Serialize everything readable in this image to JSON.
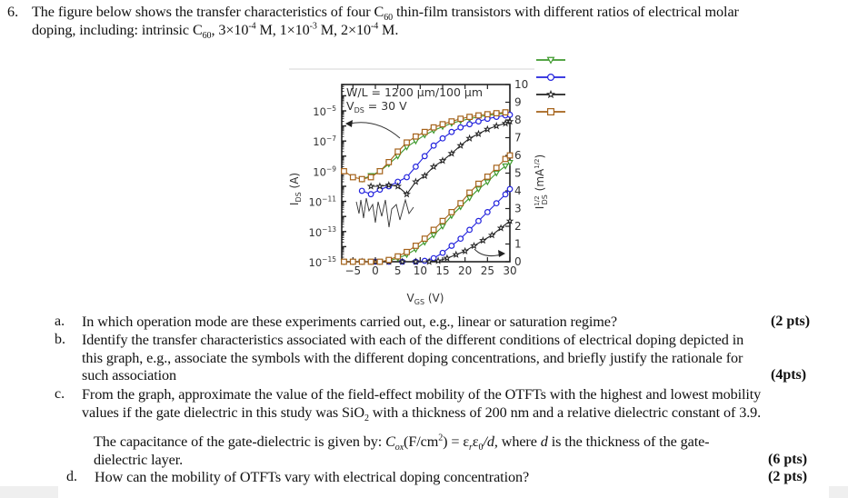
{
  "question": {
    "number": "6.",
    "intro_line1_a": "The figure below shows the transfer characteristics of four C",
    "intro_line1_sub": "60",
    "intro_line1_b": " thin-film transistors with different ratios of electrical molar",
    "intro_line2_a": "doping, including: intrinsic C",
    "intro_line2_sub": "60",
    "intro_line2_b": ", 3×10",
    "intro_line2_sup1": "-4",
    "intro_line2_c": " M, 1×10",
    "intro_line2_sup2": "-3",
    "intro_line2_d": " M,  2×10",
    "intro_line2_sup3": "-4",
    "intro_line2_e": " M."
  },
  "parts": {
    "a": {
      "label": "a.",
      "line1": "In which operation mode are these experiments carried out, e.g., linear or saturation regime?",
      "points": "(2 pts)"
    },
    "b": {
      "label": "b.",
      "line1": "Identify the transfer characteristics associated with each of the different conditions of electrical doping depicted in",
      "line2": "this graph, e.g., associate the symbols with the different doping concentrations, and briefly justify the rationale  for",
      "line3": "such association",
      "points": "(4pts)"
    },
    "c": {
      "label": "c.",
      "line1": "From the graph, approximate the value of  the field-effect mobility of the OTFTs with the highest and lowest mobility",
      "line2_a": "values if the gate dielectric in this study was SiO",
      "line2_sub": "2",
      "line2_b": " with a thickness of 200 nm and a relative dielectric constant of 3.9.",
      "note_a": "The capacitance of the gate-dielectric is given by: ",
      "note_formula": "C",
      "note_formula_sub": "ox",
      "note_units": "(F/cm",
      "note_units_sup": "2",
      "note_units_end": ") = ε",
      "note_eps_r": "r",
      "note_eps0": "ε",
      "note_eps0_sub": "0",
      "note_slash_d": "/d",
      "note_b": ", where ",
      "note_d": "d",
      "note_c": " is the thickness of the gate-",
      "note_line2": "dielectric layer.",
      "points": "(6 pts)"
    },
    "d": {
      "label": "d.",
      "line1": "How can the mobility of OTFTs vary with electrical doping concentration?",
      "points": "(2 pts)"
    }
  },
  "figure": {
    "annotation_wl": "W/L = 1200 μm/100 μm",
    "annotation_vds": "V",
    "annotation_vds_sub": "DS",
    "annotation_vds_val": " = 30 V",
    "left_axis_label": "I",
    "left_axis_label_sub": "DS",
    "left_axis_label_unit": " (A)",
    "right_axis_label": "I",
    "right_axis_label_sup": "1/2",
    "right_axis_label_sub": "DS",
    "right_axis_label_unit": " (mA",
    "right_axis_label_unit_sup": "1/2",
    "right_axis_label_unit_end": ")",
    "x_axis_label": "V",
    "x_axis_label_sub": "GS",
    "x_axis_label_unit": " (V)",
    "x_ticks": [
      "-5",
      "0",
      "5",
      "10",
      "15",
      "20",
      "25",
      "30"
    ],
    "right_ticks": [
      "0",
      "1",
      "2",
      "3",
      "4",
      "5",
      "6",
      "7",
      "8",
      "9",
      "10"
    ],
    "left_ticks": [
      {
        "base": "10",
        "exp": "−5"
      },
      {
        "base": "10",
        "exp": "−7"
      },
      {
        "base": "10",
        "exp": "−9"
      },
      {
        "base": "10",
        "exp": "−11"
      },
      {
        "base": "10",
        "exp": "−13"
      },
      {
        "base": "10",
        "exp": "−15"
      }
    ],
    "legend": [
      {
        "marker": "triangle-down",
        "color": "#3f9a2e"
      },
      {
        "marker": "circle",
        "color": "#2222dd"
      },
      {
        "marker": "star",
        "color": "#222222"
      },
      {
        "marker": "square",
        "color": "#a5621a"
      }
    ]
  },
  "chart_data": {
    "type": "line",
    "title": "",
    "xlabel": "V_GS (V)",
    "ylabel": "I_DS (A) [log, left]",
    "y2label": "I_DS^1/2 (mA^1/2) [linear, right]",
    "xlim": [
      -7.5,
      30
    ],
    "ylim_log": [
      1e-15,
      0.0001
    ],
    "y2lim": [
      0,
      10
    ],
    "annotations": [
      "W/L = 1200 μm/100 μm",
      "V_DS = 30 V",
      "arrow to left axis (log curves)",
      "arrow to right axis (sqrt curves)"
    ],
    "legend_position": "upper right outside",
    "grid": false,
    "series": [
      {
        "name": "triangle-down (green)",
        "color": "#3f9a2e",
        "log_x": [
          -3,
          -1,
          1,
          3,
          5,
          7,
          9,
          11,
          13,
          15,
          17,
          19,
          21,
          23,
          25,
          27,
          29
        ],
        "log_y": [
          3e-10,
          5e-10,
          1e-09,
          3e-09,
          1e-08,
          4e-08,
          1e-07,
          2.5e-07,
          5e-07,
          9e-07,
          1.5e-06,
          2.2e-06,
          3e-06,
          4e-06,
          5e-06,
          6e-06,
          7e-06
        ],
        "sqrt_x": [
          -7,
          -5,
          -3,
          -1,
          1,
          3,
          5,
          7,
          9,
          11,
          13,
          15,
          17,
          19,
          21,
          23,
          25,
          27,
          29,
          30
        ],
        "sqrt_y": [
          0,
          0,
          0,
          0,
          0,
          0.05,
          0.2,
          0.4,
          0.7,
          1.1,
          1.5,
          2.0,
          2.6,
          3.1,
          3.6,
          4.1,
          4.5,
          5.0,
          5.4,
          5.6
        ]
      },
      {
        "name": "circle (blue)",
        "color": "#2222dd",
        "log_x": [
          -3,
          -1,
          1,
          3,
          5,
          7,
          9,
          11,
          13,
          15,
          17,
          19,
          21,
          23,
          25,
          27,
          29,
          30
        ],
        "log_y": [
          5e-11,
          3e-11,
          6e-11,
          1e-10,
          2e-10,
          4e-10,
          2e-09,
          1e-08,
          5e-08,
          1.5e-07,
          4e-07,
          8e-07,
          1.3e-06,
          2e-06,
          3e-06,
          4e-06,
          5e-06,
          5.5e-06
        ],
        "sqrt_x": [
          -3,
          0,
          3,
          6,
          9,
          11,
          13,
          15,
          17,
          19,
          21,
          23,
          25,
          27,
          29,
          30
        ],
        "sqrt_y": [
          0,
          0,
          0,
          0,
          0,
          0.05,
          0.2,
          0.5,
          0.9,
          1.3,
          1.8,
          2.3,
          2.8,
          3.3,
          3.8,
          4.1
        ]
      },
      {
        "name": "star (black)",
        "color": "#222222",
        "log_x": [
          -1,
          1,
          3,
          5,
          7,
          9,
          11,
          13,
          15,
          17,
          19,
          21,
          23,
          25,
          27,
          29,
          30
        ],
        "log_y": [
          1e-10,
          1e-10,
          1.2e-10,
          1e-10,
          3e-11,
          2e-10,
          5e-10,
          2e-09,
          5e-09,
          1.5e-08,
          5e-08,
          1.5e-07,
          3e-07,
          6e-07,
          1e-06,
          1.5e-06,
          2e-06
        ],
        "sqrt_x": [
          -3,
          0,
          3,
          6,
          9,
          12,
          14,
          16,
          18,
          20,
          22,
          24,
          26,
          28,
          30
        ],
        "sqrt_y": [
          0,
          0,
          0,
          0,
          0,
          0,
          0.05,
          0.2,
          0.4,
          0.6,
          0.9,
          1.2,
          1.5,
          1.9,
          2.3
        ]
      },
      {
        "name": "square (brown)",
        "color": "#a5621a",
        "log_x": [
          -7,
          -5,
          -3,
          -1,
          1,
          3,
          5,
          7,
          9,
          11,
          13,
          15,
          17,
          19,
          21,
          23,
          25,
          27,
          29
        ],
        "log_y": [
          1e-09,
          4e-10,
          3e-10,
          4e-10,
          1e-09,
          4e-09,
          2e-08,
          8e-08,
          2e-07,
          4e-07,
          8e-07,
          1.3e-06,
          2e-06,
          3e-06,
          4e-06,
          5e-06,
          6e-06,
          7e-06,
          8e-06
        ],
        "sqrt_x": [
          -7,
          -5,
          -3,
          -1,
          1,
          3,
          5,
          7,
          9,
          11,
          13,
          15,
          17,
          19,
          21,
          23,
          25,
          27,
          29,
          30
        ],
        "sqrt_y": [
          0,
          0,
          0,
          0,
          0,
          0.1,
          0.3,
          0.55,
          0.9,
          1.3,
          1.8,
          2.3,
          2.8,
          3.3,
          3.9,
          4.4,
          4.8,
          5.3,
          5.8,
          6.0
        ]
      }
    ]
  }
}
